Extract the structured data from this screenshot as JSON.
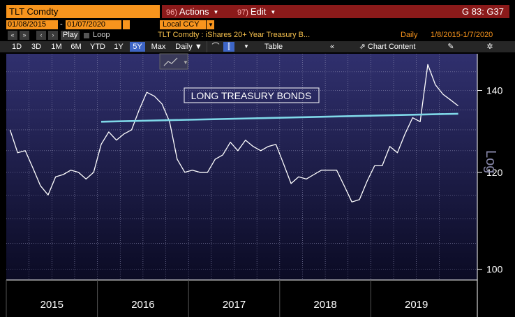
{
  "header": {
    "ticker": "TLT Comdty",
    "actions_num": "96)",
    "actions_label": "Actions",
    "edit_num": "97)",
    "edit_label": "Edit",
    "gcode": "G 83: G37"
  },
  "dates": {
    "start": "01/08/2015",
    "end": "01/07/2020",
    "currency": "Local CCY"
  },
  "playrow": {
    "play": "Play",
    "loop": "Loop",
    "description": "TLT Comdty : iShares 20+ Year Treasury B...",
    "period": "Daily",
    "range": "1/8/2015-1/7/2020"
  },
  "toolbar": {
    "periods": [
      "1D",
      "3D",
      "1M",
      "6M",
      "YTD",
      "1Y",
      "5Y",
      "Max"
    ],
    "active_period": "5Y",
    "frequency": "Daily",
    "table": "Table",
    "chart_content": "Chart Content"
  },
  "chart_data": {
    "type": "line",
    "annotation": "LONG TREASURY BONDS",
    "y_axis_label": "Log",
    "y_scale": "log",
    "ylim": [
      98,
      150
    ],
    "y_ticks": [
      100,
      120,
      140
    ],
    "x_labels": [
      "2015",
      "2016",
      "2017",
      "2018",
      "2019"
    ],
    "series": [
      {
        "color": "#ffffff",
        "x": [
          "2015-01",
          "2015-02",
          "2015-03",
          "2015-04",
          "2015-05",
          "2015-06",
          "2015-07",
          "2015-08",
          "2015-09",
          "2015-10",
          "2015-11",
          "2015-12",
          "2016-01",
          "2016-02",
          "2016-03",
          "2016-04",
          "2016-05",
          "2016-06",
          "2016-07",
          "2016-08",
          "2016-09",
          "2016-10",
          "2016-11",
          "2016-12",
          "2017-01",
          "2017-02",
          "2017-03",
          "2017-04",
          "2017-05",
          "2017-06",
          "2017-07",
          "2017-08",
          "2017-09",
          "2017-10",
          "2017-11",
          "2017-12",
          "2018-01",
          "2018-02",
          "2018-03",
          "2018-04",
          "2018-05",
          "2018-06",
          "2018-07",
          "2018-08",
          "2018-09",
          "2018-10",
          "2018-11",
          "2018-12",
          "2019-01",
          "2019-02",
          "2019-03",
          "2019-04",
          "2019-05",
          "2019-06",
          "2019-07",
          "2019-08",
          "2019-09",
          "2019-10",
          "2019-11",
          "2019-12"
        ],
        "values": [
          130.0,
          124.5,
          125.0,
          121.0,
          117.0,
          115.0,
          119.0,
          119.5,
          120.5,
          120.0,
          118.5,
          120.0,
          126.5,
          129.5,
          127.5,
          129.0,
          130.0,
          135.0,
          139.5,
          138.5,
          136.5,
          132.0,
          123.0,
          120.0,
          120.5,
          120.0,
          120.0,
          123.0,
          124.0,
          127.0,
          125.0,
          127.5,
          126.0,
          125.0,
          126.0,
          126.5,
          122.0,
          117.5,
          119.0,
          118.5,
          119.5,
          120.5,
          120.5,
          120.5,
          117.0,
          113.5,
          114.0,
          118.0,
          121.5,
          121.5,
          126.0,
          124.5,
          129.0,
          133.0,
          132.0,
          147.0,
          141.5,
          139.0,
          137.5,
          136.0
        ]
      },
      {
        "color": "#7fd8e8",
        "x": [
          "2016-01",
          "2019-12"
        ],
        "values": [
          132.0,
          134.0
        ]
      }
    ]
  }
}
